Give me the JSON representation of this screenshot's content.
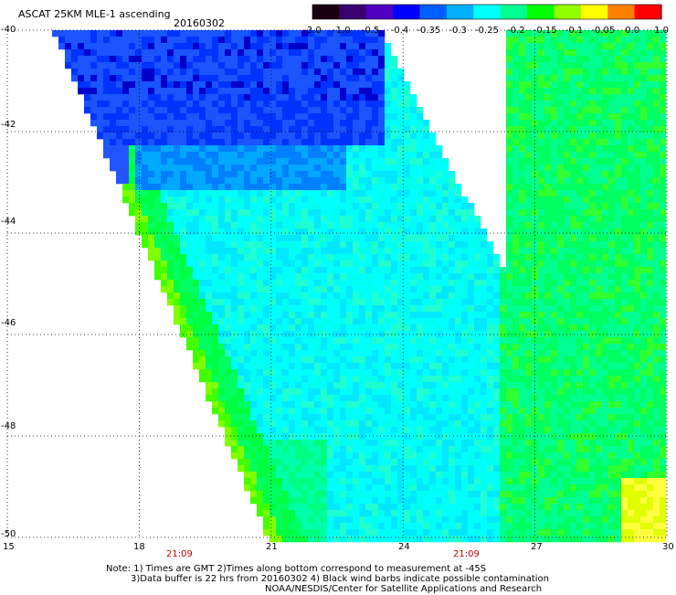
{
  "title": "ASCAT 25KM MLE-1 ascending",
  "date": "20160302",
  "colorbar": {
    "labels": [
      "-3.0",
      "-1.0",
      "-0.5",
      "-0.4",
      "-0.35",
      "-0.3",
      "-0.25",
      "-0.2",
      "-0.15",
      "-0.1",
      "-0.05",
      "0.0",
      "1.0"
    ],
    "colors": [
      "#1a0010",
      "#3a0070",
      "#5000c0",
      "#0000ff",
      "#0060ff",
      "#00b0ff",
      "#00ffff",
      "#00ff90",
      "#00ff00",
      "#90ff00",
      "#ffff00",
      "#ff8000",
      "#ff0000"
    ]
  },
  "axes": {
    "lat_labels": [
      "-40",
      "-42",
      "-44",
      "-46",
      "-48",
      "-50"
    ],
    "lon_labels": [
      "15",
      "18",
      "21",
      "24",
      "27",
      "30"
    ],
    "lat_values": [
      -40,
      -42,
      -44,
      -46,
      -48,
      -50
    ],
    "lon_values": [
      15,
      18,
      21,
      24,
      27,
      30
    ]
  },
  "times": [
    "21:09",
    "21:09"
  ],
  "notes": {
    "line1": "Note: 1) Times are GMT 2)Times along bottom correspond to measurement at -45S",
    "line2": "3)Data buffer is 22 hrs from 20160302 4) Black wind barbs indicate possible contamination",
    "line3": "NOAA/NESDIS/Center for Satellite Applications and Research"
  }
}
